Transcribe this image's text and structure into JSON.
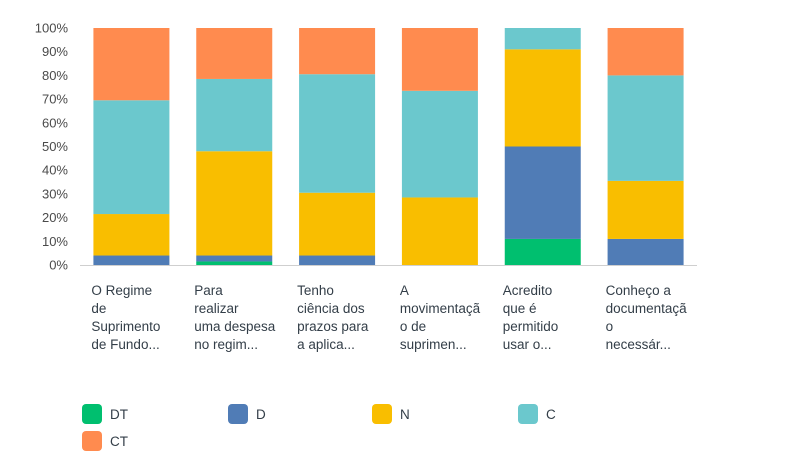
{
  "chart_data": {
    "type": "bar",
    "stacked": true,
    "percent": true,
    "title": "",
    "xlabel": "",
    "ylabel": "",
    "ylim": [
      0,
      100
    ],
    "yticks": [
      "0%",
      "10%",
      "20%",
      "30%",
      "40%",
      "50%",
      "60%",
      "70%",
      "80%",
      "90%",
      "100%"
    ],
    "categories": [
      "O Regime de Suprimento de Fundo...",
      "Para realizar uma despesa no regim...",
      "Tenho ciência dos prazos para a aplica...",
      "A movimentação de suprimen...",
      "Acredito que é permitido usar o...",
      "Conheço a documentação necessár..."
    ],
    "category_lines": [
      [
        "O Regime",
        "de",
        "Suprimento",
        "de Fundo..."
      ],
      [
        "Para",
        "realizar",
        "uma despesa",
        "no regim..."
      ],
      [
        "Tenho",
        "ciência dos",
        "prazos para",
        "a aplica..."
      ],
      [
        "A",
        "movimentaçã",
        "o de",
        "suprimen..."
      ],
      [
        "Acredito",
        "que é",
        "permitido",
        "usar o..."
      ],
      [
        "Conheço a",
        "documentaçã",
        "o",
        "necessár..."
      ]
    ],
    "series": [
      {
        "name": "DT",
        "color": "#00bf6f",
        "values": [
          0,
          1.5,
          0,
          0,
          11,
          0
        ]
      },
      {
        "name": "D",
        "color": "#507cb6",
        "values": [
          4,
          2.5,
          4,
          0,
          39,
          11
        ]
      },
      {
        "name": "N",
        "color": "#f9be00",
        "values": [
          17.5,
          44,
          26.5,
          28.5,
          41,
          24.5
        ]
      },
      {
        "name": "C",
        "color": "#6bc8cd",
        "values": [
          48,
          30.5,
          50,
          45,
          9,
          44.5
        ]
      },
      {
        "name": "CT",
        "color": "#ff8b4f",
        "values": [
          30.5,
          21.5,
          19.5,
          26.5,
          0,
          20
        ]
      }
    ],
    "legend_position": "bottom",
    "grid": false
  }
}
